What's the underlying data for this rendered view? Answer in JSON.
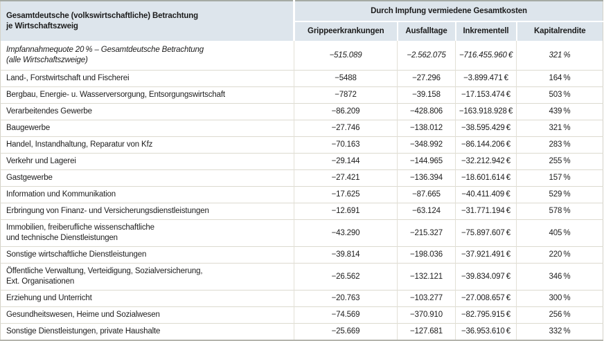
{
  "chart_data": {
    "type": "table",
    "corner_header": "Gesamtdeutsche (volkswirtschaftliche) Betrachtung\nje Wirtschaftszweig",
    "group_header": "Durch Impfung vermiedene Gesamtkosten",
    "columns": [
      "Grippeerkrankungen",
      "Ausfalltage",
      "Inkrementell",
      "Kapitalrendite"
    ],
    "rows": [
      {
        "sector": "Impfannahmequote 20 % – Gesamtdeutsche Betrachtung\n(alle Wirtschaftszweige)",
        "flu_cases": "−515.089",
        "absence_days": "−2.562.075",
        "incremental": "−716.455.960 €",
        "roi": "321 %",
        "italic": true
      },
      {
        "sector": "Land-, Forstwirtschaft und Fischerei",
        "flu_cases": "−5488",
        "absence_days": "−27.296",
        "incremental": "−3.899.471 €",
        "roi": "164 %"
      },
      {
        "sector": "Bergbau, Energie- u. Wasserversorgung, Entsorgungswirtschaft",
        "flu_cases": "−7872",
        "absence_days": "−39.158",
        "incremental": "−17.153.474 €",
        "roi": "503 %"
      },
      {
        "sector": "Verarbeitendes Gewerbe",
        "flu_cases": "−86.209",
        "absence_days": "−428.806",
        "incremental": "−163.918.928 €",
        "roi": "439 %"
      },
      {
        "sector": "Baugewerbe",
        "flu_cases": "−27.746",
        "absence_days": "−138.012",
        "incremental": "−38.595.429 €",
        "roi": "321 %"
      },
      {
        "sector": "Handel, Instandhaltung, Reparatur von Kfz",
        "flu_cases": "−70.163",
        "absence_days": "−348.992",
        "incremental": "−86.144.206 €",
        "roi": "283 %"
      },
      {
        "sector": "Verkehr und Lagerei",
        "flu_cases": "−29.144",
        "absence_days": "−144.965",
        "incremental": "−32.212.942 €",
        "roi": "255 %"
      },
      {
        "sector": "Gastgewerbe",
        "flu_cases": "−27.421",
        "absence_days": "−136.394",
        "incremental": "−18.601.614 €",
        "roi": "157 %"
      },
      {
        "sector": "Information und Kommunikation",
        "flu_cases": "−17.625",
        "absence_days": "−87.665",
        "incremental": "−40.411.409 €",
        "roi": "529 %"
      },
      {
        "sector": "Erbringung von Finanz- und Versicherungsdienstleistungen",
        "flu_cases": "−12.691",
        "absence_days": "−63.124",
        "incremental": "−31.771.194 €",
        "roi": "578 %"
      },
      {
        "sector": "Immobilien, freiberufliche wissenschaftliche\nund technische Dienstleistungen",
        "flu_cases": "−43.290",
        "absence_days": "−215.327",
        "incremental": "−75.897.607 €",
        "roi": "405 %"
      },
      {
        "sector": "Sonstige wirtschaftliche Dienstleistungen",
        "flu_cases": "−39.814",
        "absence_days": "−198.036",
        "incremental": "−37.921.491 €",
        "roi": "220 %"
      },
      {
        "sector": "Öffentliche Verwaltung, Verteidigung, Sozialversicherung,\nExt. Organisationen",
        "flu_cases": "−26.562",
        "absence_days": "−132.121",
        "incremental": "−39.834.097 €",
        "roi": "346 %"
      },
      {
        "sector": "Erziehung und Unterricht",
        "flu_cases": "−20.763",
        "absence_days": "−103.277",
        "incremental": "−27.008.657 €",
        "roi": "300 %"
      },
      {
        "sector": "Gesundheitswesen, Heime und Sozialwesen",
        "flu_cases": "−74.569",
        "absence_days": "−370.910",
        "incremental": "−82.795.915 €",
        "roi": "256 %"
      },
      {
        "sector": "Sonstige Dienstleistungen, private Haushalte",
        "flu_cases": "−25.669",
        "absence_days": "−127.681",
        "incremental": "−36.953.610 €",
        "roi": "332 %"
      }
    ]
  },
  "colors": {
    "header_bg": "#dde5ec",
    "grid_line": "#dcdacf",
    "grid_line_vertical": "#e2e0d6",
    "outer_border_top": "#a5aaa4",
    "outer_border_bottom": "#b4b4ac",
    "outer_border_side": "#d4d2c8",
    "text": "#1c1c1c"
  }
}
